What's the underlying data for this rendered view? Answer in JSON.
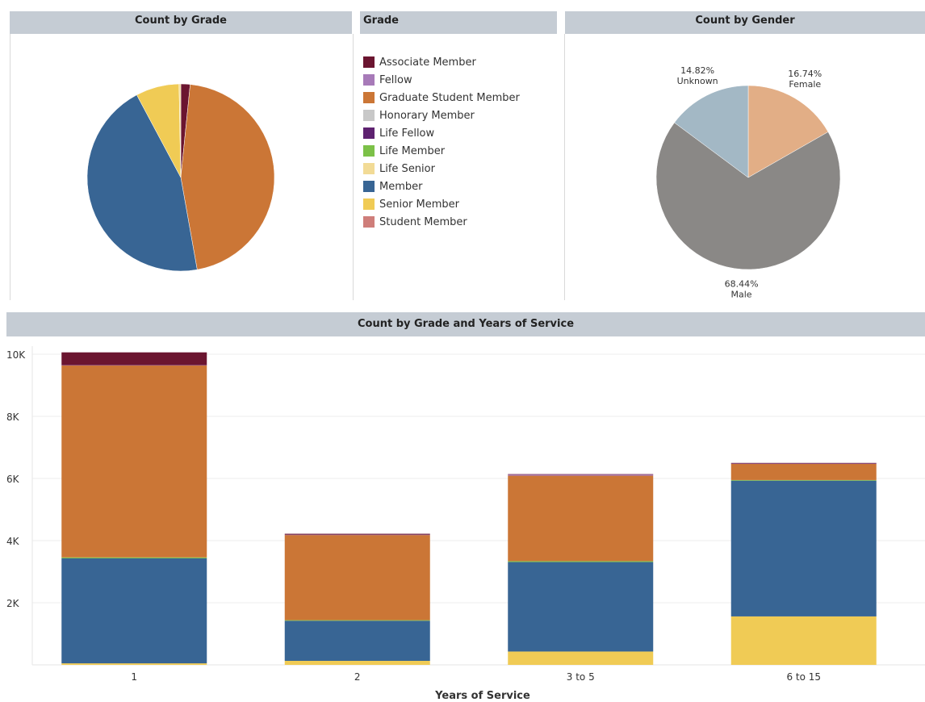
{
  "colors": {
    "Associate Member": "#6b1530",
    "Fellow": "#a77ab8",
    "Graduate Student Member": "#cb7636",
    "Honorary Member": "#c8c8c8",
    "Life Fellow": "#5e2270",
    "Life Member": "#7cc148",
    "Life Senior": "#f2db96",
    "Member": "#386594",
    "Senior Member": "#f0cb55",
    "Student Member": "#cf7e7a",
    "Unknown": "#a3b8c5",
    "Female": "#e2ae86",
    "Male": "#8a8886"
  },
  "legend": {
    "title": "Grade",
    "items": [
      {
        "label": "Associate Member",
        "key": "Associate Member"
      },
      {
        "label": "Fellow",
        "key": "Fellow"
      },
      {
        "label": "Graduate Student Member",
        "key": "Graduate Student Member"
      },
      {
        "label": "Honorary Member",
        "key": "Honorary Member"
      },
      {
        "label": "Life Fellow",
        "key": "Life Fellow"
      },
      {
        "label": "Life Member",
        "key": "Life Member"
      },
      {
        "label": "Life Senior",
        "key": "Life Senior"
      },
      {
        "label": "Member",
        "key": "Member"
      },
      {
        "label": "Senior Member",
        "key": "Senior Member"
      },
      {
        "label": "Student Member",
        "key": "Student Member"
      }
    ]
  },
  "chart_data": [
    {
      "type": "pie",
      "title": "Count by Grade",
      "slices": [
        {
          "name": "Associate Member",
          "value": 1.6
        },
        {
          "name": "Graduate Student Member",
          "value": 45.6
        },
        {
          "name": "Member",
          "value": 45.0
        },
        {
          "name": "Senior Member",
          "value": 7.5
        },
        {
          "name": "Life Senior",
          "value": 0.3
        }
      ]
    },
    {
      "type": "pie",
      "title": "Count by Gender",
      "slices": [
        {
          "name": "Female",
          "value": 16.74,
          "label_pct": "16.74%",
          "label_name": "Female"
        },
        {
          "name": "Male",
          "value": 68.44,
          "label_pct": "68.44%",
          "label_name": "Male"
        },
        {
          "name": "Unknown",
          "value": 14.82,
          "label_pct": "14.82%",
          "label_name": "Unknown"
        }
      ]
    },
    {
      "type": "bar",
      "stacked": true,
      "title": "Count by Grade and Years of Service",
      "xlabel": "Years of Service",
      "ylabel": "",
      "ylim": [
        0,
        10000
      ],
      "yticks": [
        2000,
        4000,
        6000,
        8000,
        10000
      ],
      "ytick_labels": [
        "2K",
        "4K",
        "6K",
        "8K",
        "10K"
      ],
      "categories": [
        "1",
        "2",
        "3 to 5",
        "6 to 15"
      ],
      "series": [
        {
          "name": "Senior Member",
          "values": [
            50,
            130,
            430,
            1560
          ]
        },
        {
          "name": "Member",
          "values": [
            3380,
            1290,
            2880,
            4370
          ]
        },
        {
          "name": "Life Member",
          "values": [
            30,
            20,
            30,
            20
          ]
        },
        {
          "name": "Graduate Student Member",
          "values": [
            6180,
            2740,
            2750,
            520
          ]
        },
        {
          "name": "Fellow",
          "values": [
            10,
            10,
            40,
            10
          ]
        },
        {
          "name": "Associate Member",
          "values": [
            410,
            30,
            10,
            20
          ]
        }
      ]
    }
  ]
}
